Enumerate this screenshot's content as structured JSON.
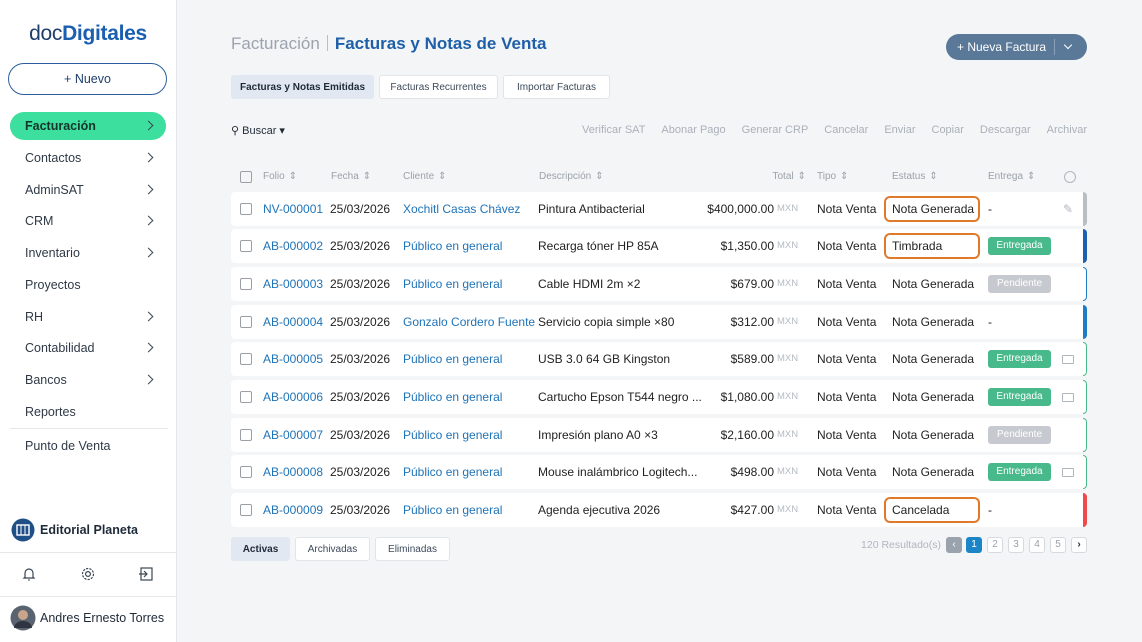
{
  "sidebar": {
    "logo": {
      "prefix": "doc",
      "main": "Digitales"
    },
    "new_button": "+ Nuevo",
    "menu": [
      {
        "label": "Facturación",
        "submenu": true,
        "active": true
      },
      {
        "label": "Contactos",
        "submenu": true
      },
      {
        "label": "AdminSAT",
        "submenu": true
      },
      {
        "label": "CRM",
        "submenu": true
      },
      {
        "label": "Inventario",
        "submenu": true
      },
      {
        "label": "Proyectos",
        "submenu": false
      },
      {
        "label": "RH",
        "submenu": true
      },
      {
        "label": "Contabilidad",
        "submenu": true
      },
      {
        "label": "Bancos",
        "submenu": true
      },
      {
        "label": "Reportes",
        "submenu": false
      }
    ],
    "extra_menu": [
      "Punto de Venta"
    ],
    "company": "Editorial Planeta",
    "user": "Andres Ernesto Torres"
  },
  "header": {
    "section": "Facturación",
    "title": "Facturas y Notas de Venta",
    "new_button": "+ Nueva Factura"
  },
  "tabs": [
    "Facturas y Notas Emitidas",
    "Facturas Recurrentes",
    "Importar Facturas"
  ],
  "toolbar": {
    "search": "Buscar",
    "actions": [
      "Verificar SAT",
      "Abonar Pago",
      "Generar CRP",
      "Cancelar",
      "Enviar",
      "Copiar",
      "Descargar",
      "Archivar"
    ]
  },
  "table": {
    "columns": [
      "Folio",
      "Fecha",
      "Cliente",
      "Descripción",
      "Total",
      "Tipo",
      "Estatus",
      "Entrega"
    ],
    "rows": [
      {
        "folio": "NV-000001",
        "fecha": "25/03/2026",
        "cliente": "Xochitl Casas Chávez",
        "descripcion": "Pintura Antibacterial",
        "total": "$400,000.00",
        "moneda": "MXN",
        "tipo": "Nota Venta",
        "estatus": "Nota Generada",
        "estatus_highlight": true,
        "entrega": "-",
        "indicator": "#b9bec5",
        "indicator_filled": true
      },
      {
        "folio": "AB-000002",
        "fecha": "25/03/2026",
        "cliente": "Público en general",
        "descripcion": "Recarga tóner HP 85A",
        "total": "$1,350.00",
        "moneda": "MXN",
        "tipo": "Nota Venta",
        "estatus": "Timbrada",
        "estatus_highlight": true,
        "entrega": "Entregada",
        "entrega_color": "#48b98b",
        "indicator": "#1f5fb0",
        "indicator_filled": true
      },
      {
        "folio": "AB-000003",
        "fecha": "25/03/2026",
        "cliente": "Público en general",
        "descripcion": "Cable HDMI 2m ×2",
        "total": "$679.00",
        "moneda": "MXN",
        "tipo": "Nota Venta",
        "estatus": "Nota Generada",
        "estatus_highlight": false,
        "entrega": "Pendiente",
        "entrega_color": "#c6cad0",
        "indicator": "#1f7cc4",
        "indicator_filled": false
      },
      {
        "folio": "AB-000004",
        "fecha": "25/03/2026",
        "cliente": "Gonzalo Cordero Fuente",
        "descripcion": "Servicio copia simple ×80",
        "total": "$312.00",
        "moneda": "MXN",
        "tipo": "Nota Venta",
        "estatus": "Nota Generada",
        "estatus_highlight": false,
        "entrega": "-",
        "indicator": "#1f7cc4",
        "indicator_filled": true
      },
      {
        "folio": "AB-000005",
        "fecha": "25/03/2026",
        "cliente": "Público en general",
        "descripcion": "USB 3.0 64 GB Kingston",
        "total": "$589.00",
        "moneda": "MXN",
        "tipo": "Nota Venta",
        "estatus": "Nota Generada",
        "estatus_highlight": false,
        "entrega": "Entregada",
        "entrega_color": "#48b98b",
        "icon": true,
        "indicator": "#48b98b",
        "indicator_filled": false
      },
      {
        "folio": "AB-000006",
        "fecha": "25/03/2026",
        "cliente": "Público en general",
        "descripcion": "Cartucho Epson T544 negro ...",
        "total": "$1,080.00",
        "moneda": "MXN",
        "tipo": "Nota Venta",
        "estatus": "Nota Generada",
        "estatus_highlight": false,
        "entrega": "Entregada",
        "entrega_color": "#48b98b",
        "icon": true,
        "indicator": "#48b98b",
        "indicator_filled": false
      },
      {
        "folio": "AB-000007",
        "fecha": "25/03/2026",
        "cliente": "Público en general",
        "descripcion": "Impresión plano A0 ×3",
        "total": "$2,160.00",
        "moneda": "MXN",
        "tipo": "Nota Venta",
        "estatus": "Nota Generada",
        "estatus_highlight": false,
        "entrega": "Pendiente",
        "entrega_color": "#c6cad0",
        "indicator": "#48b98b",
        "indicator_filled": false
      },
      {
        "folio": "AB-000008",
        "fecha": "25/03/2026",
        "cliente": "Público en general",
        "descripcion": "Mouse inalámbrico Logitech...",
        "total": "$498.00",
        "moneda": "MXN",
        "tipo": "Nota Venta",
        "estatus": "Nota Generada",
        "estatus_highlight": false,
        "entrega": "Entregada",
        "entrega_color": "#48b98b",
        "icon": true,
        "indicator": "#48b98b",
        "indicator_filled": false
      },
      {
        "folio": "AB-000009",
        "fecha": "25/03/2026",
        "cliente": "Público en general",
        "descripcion": "Agenda ejecutiva 2026",
        "total": "$427.00",
        "moneda": "MXN",
        "tipo": "Nota Venta",
        "estatus": "Cancelada",
        "estatus_highlight": true,
        "entrega": "-",
        "indicator": "#ef4b4b",
        "indicator_filled": true
      }
    ]
  },
  "footer": {
    "tabs": [
      "Activas",
      "Archivadas",
      "Eliminadas"
    ],
    "results": "120 Resultado(s)",
    "pages": [
      1,
      2,
      3,
      4,
      5
    ],
    "current_page": 1
  }
}
